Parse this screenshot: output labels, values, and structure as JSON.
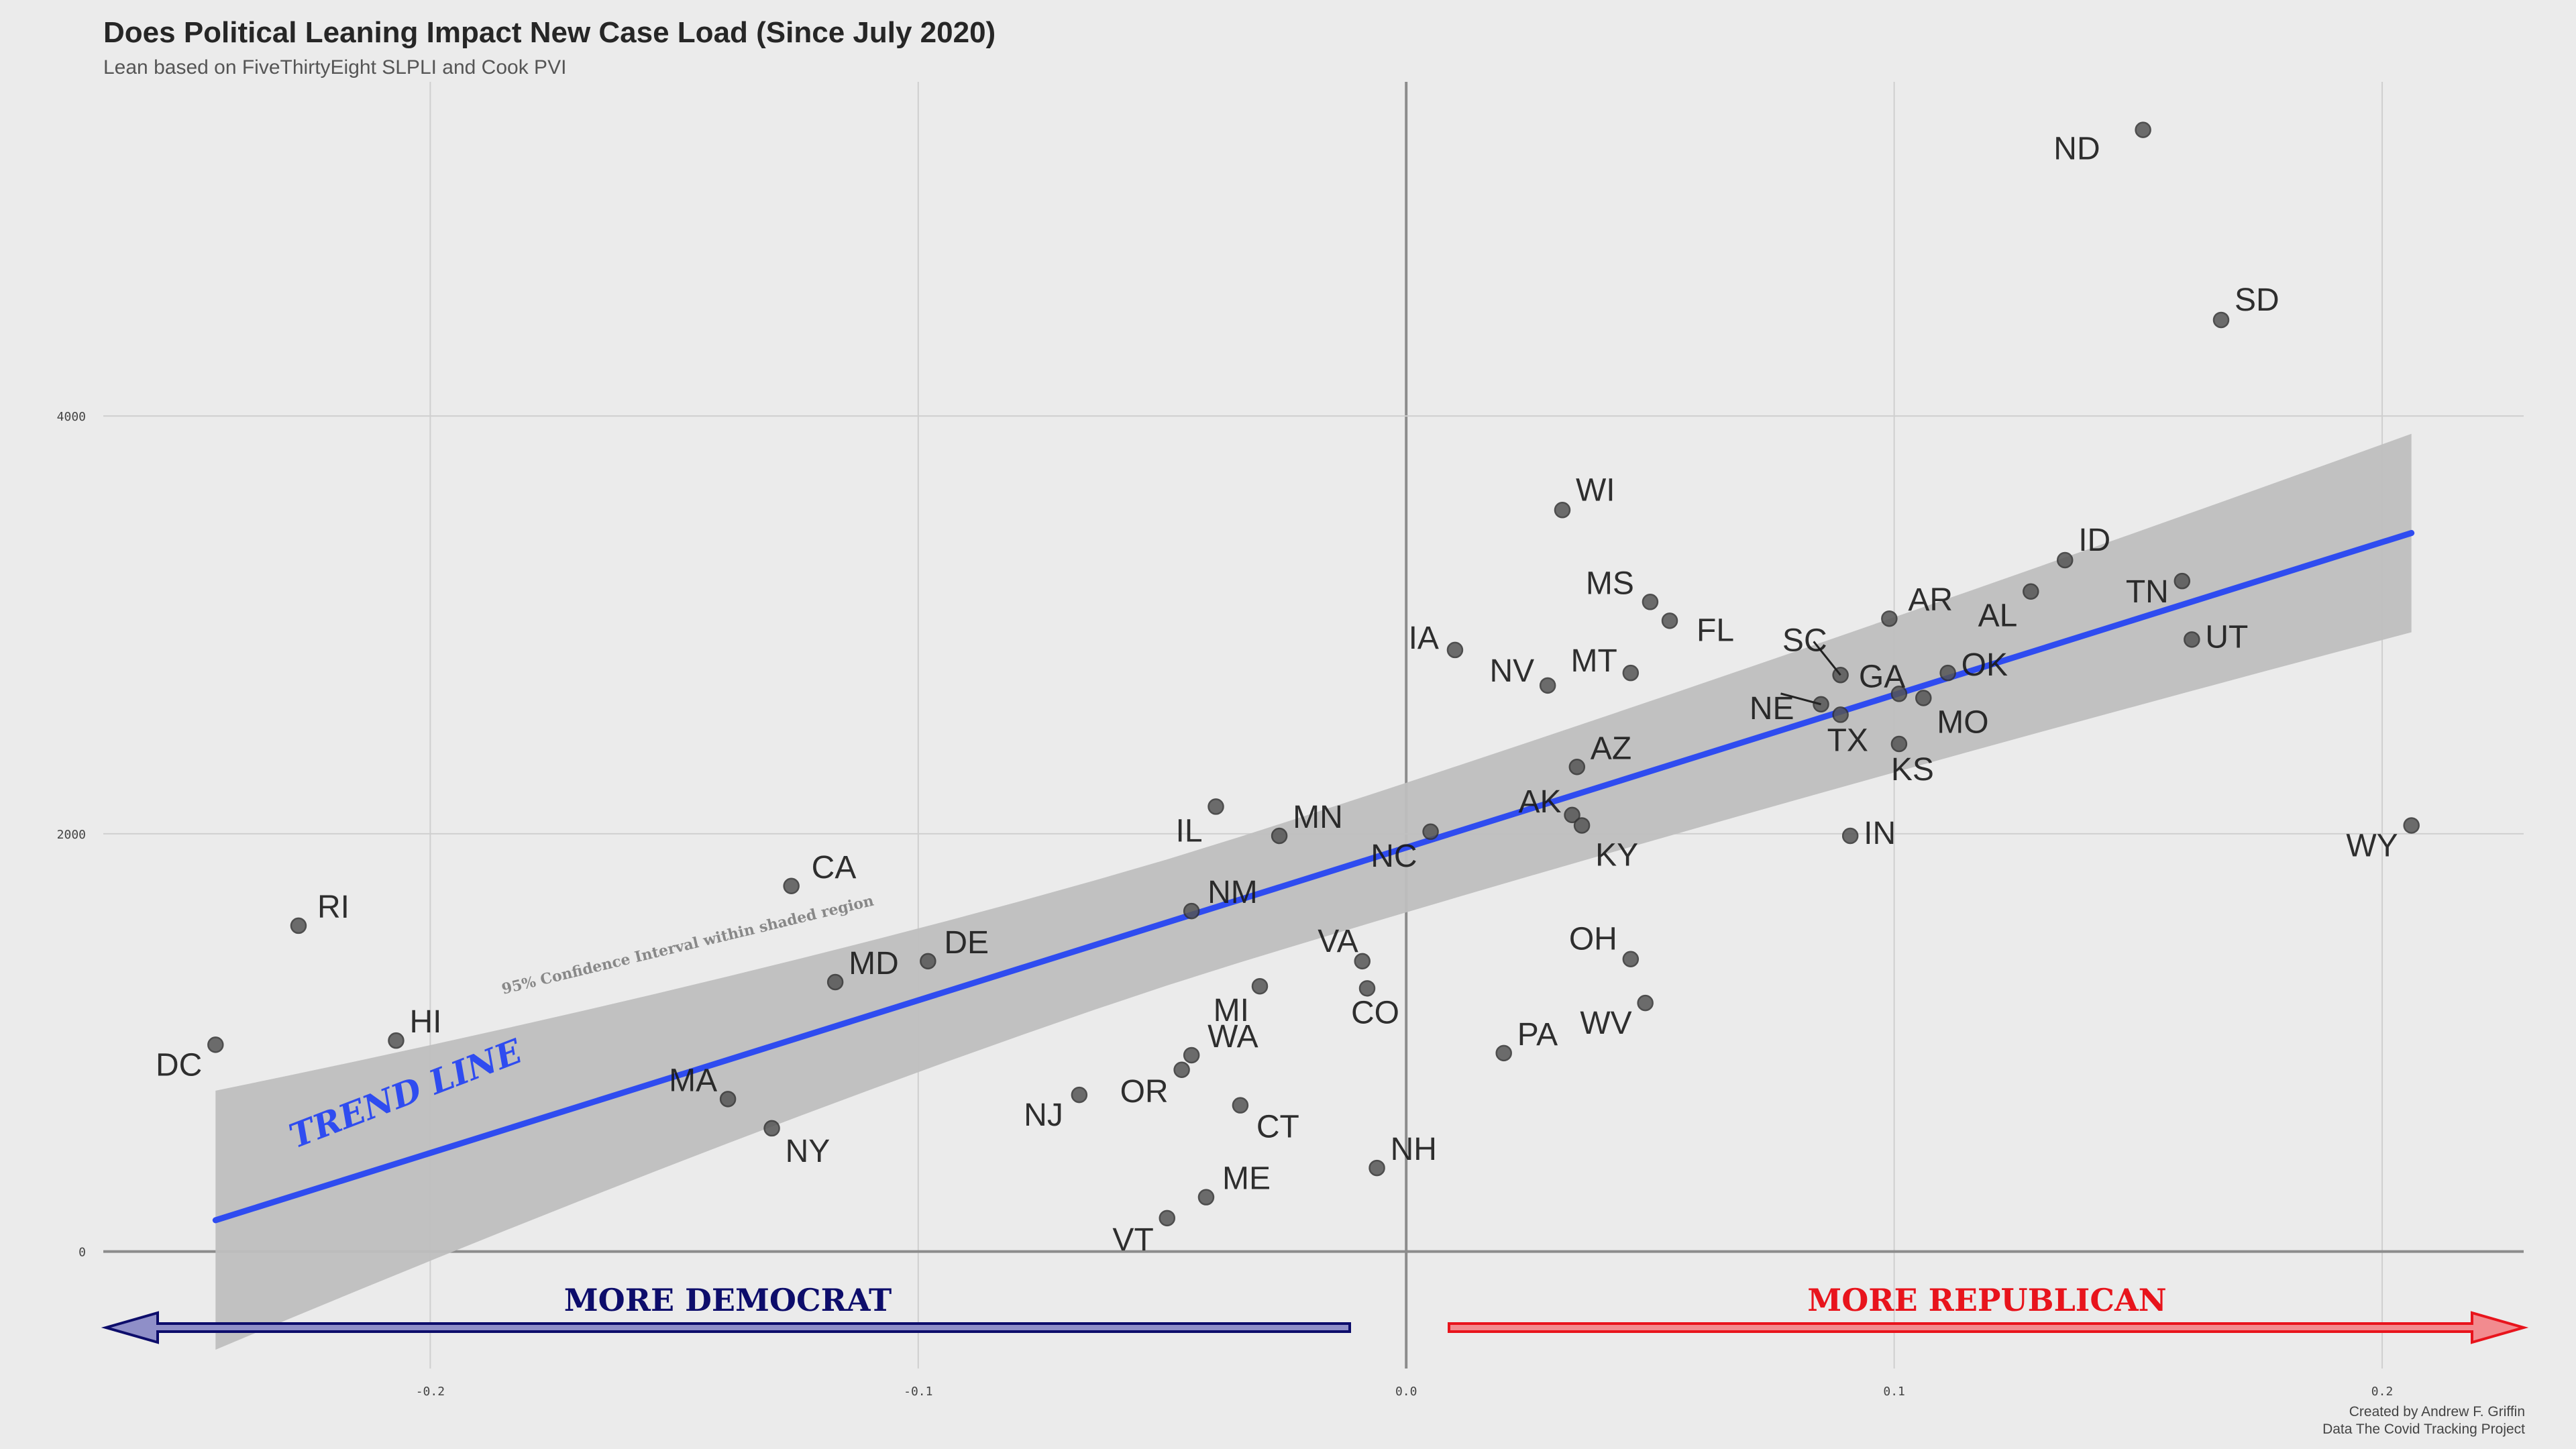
{
  "chart_data": {
    "type": "scatter",
    "title": "Does Political Leaning Impact New Case Load (Since July 2020)",
    "subtitle": "Lean based on FiveThirtyEight SLPLI and Cook PVI",
    "credits": [
      "Created by Andrew F. Griffin",
      "Data The Covid Tracking Project"
    ],
    "xlabel": "",
    "ylabel": "",
    "xlim": [
      -0.267,
      0.229
    ],
    "ylim": [
      -560,
      5600
    ],
    "x_ticks": [
      -0.2,
      -0.1,
      0.0,
      0.1,
      0.2
    ],
    "x_tick_labels": [
      "-0.2",
      "-0.1",
      "0.0",
      "0.1",
      "0.2"
    ],
    "y_ticks": [
      0,
      2000,
      4000
    ],
    "y_tick_labels": [
      "0",
      "2000",
      "4000"
    ],
    "grid": true,
    "reference_lines": {
      "x": 0,
      "y": 0
    },
    "colors": {
      "background": "#ebebeb",
      "grid": "#cfcfcf",
      "zero_line": "#8c8c8c",
      "point": "#555555",
      "trend": "#2f4cf0",
      "band": "#bfbfbf",
      "dem": "#0d0d6b",
      "rep": "#e8141c"
    },
    "points": [
      {
        "label": "ND",
        "x": 0.151,
        "y": 5370
      },
      {
        "label": "SD",
        "x": 0.167,
        "y": 4460
      },
      {
        "label": "WI",
        "x": 0.032,
        "y": 3550
      },
      {
        "label": "ID",
        "x": 0.135,
        "y": 3310
      },
      {
        "label": "TN",
        "x": 0.159,
        "y": 3210
      },
      {
        "label": "AL",
        "x": 0.128,
        "y": 3160
      },
      {
        "label": "MS",
        "x": 0.05,
        "y": 3110
      },
      {
        "label": "AR",
        "x": 0.099,
        "y": 3030
      },
      {
        "label": "FL",
        "x": 0.054,
        "y": 3020
      },
      {
        "label": "UT",
        "x": 0.161,
        "y": 2930
      },
      {
        "label": "IA",
        "x": 0.01,
        "y": 2880
      },
      {
        "label": "MT",
        "x": 0.046,
        "y": 2770
      },
      {
        "label": "OK",
        "x": 0.111,
        "y": 2770
      },
      {
        "label": "SC",
        "x": 0.089,
        "y": 2760
      },
      {
        "label": "NV",
        "x": 0.029,
        "y": 2710
      },
      {
        "label": "GA",
        "x": 0.101,
        "y": 2670
      },
      {
        "label": "MO",
        "x": 0.106,
        "y": 2650
      },
      {
        "label": "NE",
        "x": 0.085,
        "y": 2620
      },
      {
        "label": "TX",
        "x": 0.089,
        "y": 2570
      },
      {
        "label": "KS",
        "x": 0.101,
        "y": 2430
      },
      {
        "label": "AZ",
        "x": 0.035,
        "y": 2320
      },
      {
        "label": "IL",
        "x": -0.039,
        "y": 2130
      },
      {
        "label": "AK",
        "x": 0.034,
        "y": 2090
      },
      {
        "label": "KY",
        "x": 0.036,
        "y": 2040
      },
      {
        "label": "WY",
        "x": 0.206,
        "y": 2040
      },
      {
        "label": "NC",
        "x": 0.005,
        "y": 2010
      },
      {
        "label": "MN",
        "x": -0.026,
        "y": 1990
      },
      {
        "label": "IN",
        "x": 0.091,
        "y": 1990
      },
      {
        "label": "CA",
        "x": -0.126,
        "y": 1750
      },
      {
        "label": "NM",
        "x": -0.044,
        "y": 1630
      },
      {
        "label": "RI",
        "x": -0.227,
        "y": 1560
      },
      {
        "label": "OH",
        "x": 0.046,
        "y": 1400
      },
      {
        "label": "DE",
        "x": -0.098,
        "y": 1390
      },
      {
        "label": "VA",
        "x": -0.009,
        "y": 1390
      },
      {
        "label": "MD",
        "x": -0.117,
        "y": 1290
      },
      {
        "label": "MI",
        "x": -0.03,
        "y": 1270
      },
      {
        "label": "CO",
        "x": -0.008,
        "y": 1260
      },
      {
        "label": "WV",
        "x": 0.049,
        "y": 1190
      },
      {
        "label": "HI",
        "x": -0.207,
        "y": 1010
      },
      {
        "label": "DC",
        "x": -0.244,
        "y": 990
      },
      {
        "label": "PA",
        "x": 0.02,
        "y": 950
      },
      {
        "label": "WA",
        "x": -0.044,
        "y": 940
      },
      {
        "label": "OR",
        "x": -0.046,
        "y": 870
      },
      {
        "label": "NJ",
        "x": -0.067,
        "y": 750
      },
      {
        "label": "MA",
        "x": -0.139,
        "y": 730
      },
      {
        "label": "CT",
        "x": -0.034,
        "y": 700
      },
      {
        "label": "NY",
        "x": -0.13,
        "y": 590
      },
      {
        "label": "NH",
        "x": -0.006,
        "y": 400
      },
      {
        "label": "ME",
        "x": -0.041,
        "y": 260
      },
      {
        "label": "VT",
        "x": -0.049,
        "y": 160
      }
    ],
    "trend_line": {
      "x": [
        -0.244,
        0.206
      ],
      "y": [
        150,
        3440
      ]
    },
    "confidence_band": {
      "x": [
        -0.244,
        0.206
      ],
      "upper": [
        770,
        3930
      ],
      "lower": [
        -470,
        2980
      ]
    },
    "annotations": {
      "trend_label": "TREND LINE",
      "confidence_label": "95% Confidence Interval within shaded region",
      "dem_label": "MORE DEMOCRAT",
      "rep_label": "MORE REPUBLICAN"
    }
  }
}
